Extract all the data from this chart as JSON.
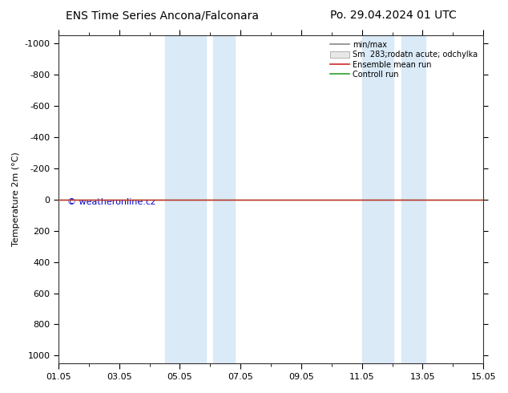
{
  "title_left": "ENS Time Series Ancona/Falconara",
  "title_right": "Po. 29.04.2024 01 UTC",
  "ylabel": "Temperature 2m (°C)",
  "watermark": "© weatheronline.cz",
  "xlim": [
    0,
    14
  ],
  "ylim": [
    1050,
    -1050
  ],
  "yticks": [
    -1000,
    -800,
    -600,
    -400,
    -200,
    0,
    200,
    400,
    600,
    800,
    1000
  ],
  "xtick_labels": [
    "01.05",
    "03.05",
    "05.05",
    "07.05",
    "09.05",
    "11.05",
    "13.05",
    "15.05"
  ],
  "xtick_positions": [
    0,
    2,
    4,
    6,
    8,
    10,
    12,
    14
  ],
  "shaded_bands": [
    [
      3.5,
      4.85
    ],
    [
      5.1,
      5.8
    ],
    [
      10.0,
      11.05
    ],
    [
      11.3,
      12.1
    ]
  ],
  "shade_color": "#daeaf7",
  "control_run_color": "#2ca02c",
  "ensemble_mean_color": "#d62728",
  "minmax_color": "#888888",
  "spread_color": "#cccccc",
  "legend_entries": [
    "min/max",
    "Sm  283;rodatn acute; odchylka",
    "Ensemble mean run",
    "Controll run"
  ],
  "background_color": "#ffffff",
  "flat_line_y": 0,
  "title_fontsize": 10,
  "axis_fontsize": 8,
  "tick_fontsize": 8,
  "watermark_color": "#0000cc"
}
